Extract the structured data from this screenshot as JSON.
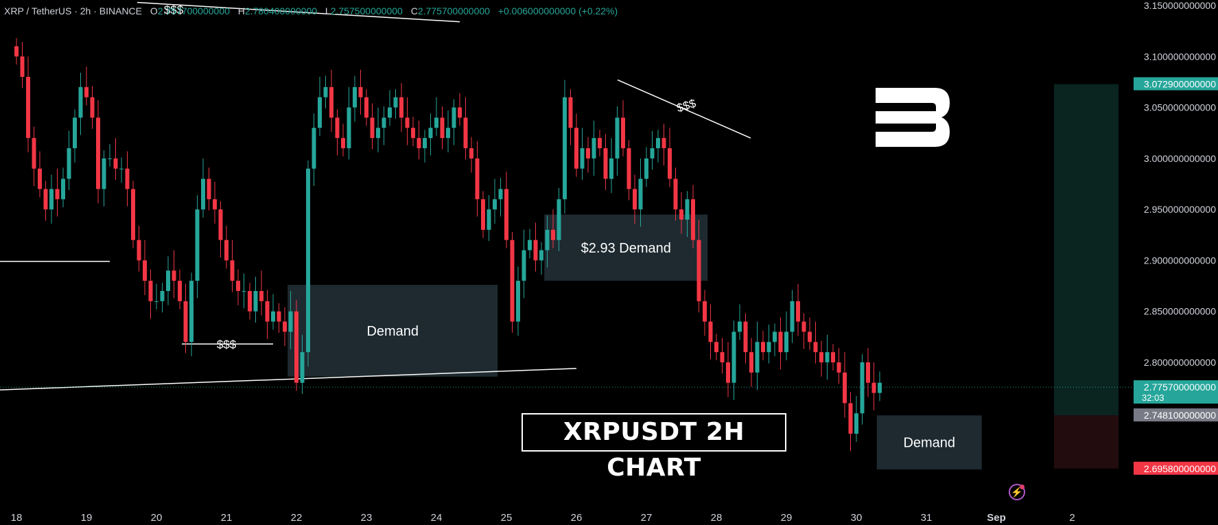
{
  "legend": {
    "symbol": "XRP / TetherUS · 2h · BINANCE",
    "open_label": "O",
    "open": "2.757700000000",
    "high_label": "H",
    "high": "2.780400000000",
    "low_label": "L",
    "low": "2.757500000000",
    "close_label": "C",
    "close": "2.775700000000",
    "change": "+0.006000000000 (+0.22%)"
  },
  "title": "XRPUSDT 2H CHART",
  "colors": {
    "up": "#26a69a",
    "down": "#f23645",
    "background": "#000000",
    "zone": "#1e2a30",
    "target_zone": "#0a2420",
    "stop_zone": "#3a1418"
  },
  "chart_data": {
    "type": "candlestick",
    "timeframe": "2h",
    "ylim": [
      2.66,
      3.15
    ],
    "y_ticks": [
      "2.800000000000",
      "2.850000000000",
      "2.900000000000",
      "2.950000000000",
      "3.000000000000",
      "3.050000000000",
      "3.100000000000",
      "3.150000000000"
    ],
    "x_ticks": [
      {
        "label": "18",
        "t": 0
      },
      {
        "label": "19",
        "t": 12
      },
      {
        "label": "20",
        "t": 24
      },
      {
        "label": "21",
        "t": 36
      },
      {
        "label": "22",
        "t": 48
      },
      {
        "label": "23",
        "t": 60
      },
      {
        "label": "24",
        "t": 72
      },
      {
        "label": "25",
        "t": 84
      },
      {
        "label": "26",
        "t": 96
      },
      {
        "label": "27",
        "t": 108
      },
      {
        "label": "28",
        "t": 120
      },
      {
        "label": "29",
        "t": 132
      },
      {
        "label": "30",
        "t": 144
      },
      {
        "label": "31",
        "t": 156
      },
      {
        "label": "Sep",
        "t": 168,
        "bold": true
      },
      {
        "label": "2",
        "t": 181
      }
    ],
    "closes": [
      3.1,
      3.08,
      3.02,
      2.99,
      2.97,
      2.95,
      2.97,
      2.96,
      2.98,
      3.01,
      3.04,
      3.07,
      3.06,
      3.04,
      2.97,
      3.0,
      3.0,
      2.99,
      2.99,
      2.97,
      2.92,
      2.9,
      2.88,
      2.86,
      2.86,
      2.87,
      2.89,
      2.88,
      2.86,
      2.82,
      2.88,
      2.95,
      2.98,
      2.96,
      2.95,
      2.92,
      2.9,
      2.88,
      2.87,
      2.87,
      2.85,
      2.87,
      2.86,
      2.84,
      2.85,
      2.84,
      2.83,
      2.85,
      2.78,
      2.81,
      2.99,
      3.03,
      3.06,
      3.07,
      3.04,
      3.02,
      3.01,
      3.05,
      3.07,
      3.06,
      3.04,
      3.02,
      3.03,
      3.04,
      3.05,
      3.06,
      3.04,
      3.03,
      3.02,
      3.01,
      3.02,
      3.03,
      3.04,
      3.02,
      3.03,
      3.05,
      3.04,
      3.01,
      3.0,
      2.96,
      2.93,
      2.95,
      2.96,
      2.97,
      2.92,
      2.84,
      2.88,
      2.91,
      2.92,
      2.9,
      2.91,
      2.93,
      2.92,
      2.96,
      3.06,
      3.03,
      2.99,
      3.01,
      3.0,
      3.02,
      3.01,
      2.98,
      3.0,
      3.04,
      3.01,
      2.97,
      2.95,
      2.98,
      3.0,
      3.01,
      3.02,
      3.01,
      2.98,
      2.95,
      2.94,
      2.96,
      2.92,
      2.86,
      2.84,
      2.82,
      2.81,
      2.8,
      2.78,
      2.83,
      2.84,
      2.81,
      2.79,
      2.82,
      2.81,
      2.82,
      2.83,
      2.81,
      2.83,
      2.86,
      2.84,
      2.83,
      2.82,
      2.81,
      2.8,
      2.81,
      2.8,
      2.79,
      2.76,
      2.73,
      2.75,
      2.8,
      2.78,
      2.77,
      2.78
    ],
    "zones": [
      {
        "label": "Demand",
        "top": 2.876,
        "bottom": 2.786
      },
      {
        "label": "$2.93 Demand",
        "top": 2.945,
        "bottom": 2.88
      },
      {
        "label": "Demand",
        "top": 2.748,
        "bottom": 2.695
      }
    ],
    "annotations": [
      "$$$",
      "$$$",
      "$$$"
    ],
    "price_labels": [
      {
        "value": "3.072900000000",
        "price": 3.0729,
        "kind": "target"
      },
      {
        "value": "2.775700000000",
        "price": 2.7757,
        "kind": "current",
        "sub": "32:03"
      },
      {
        "value": "2.748100000000",
        "price": 2.7481,
        "kind": "entry"
      },
      {
        "value": "2.695800000000",
        "price": 2.6958,
        "kind": "stop"
      }
    ]
  }
}
